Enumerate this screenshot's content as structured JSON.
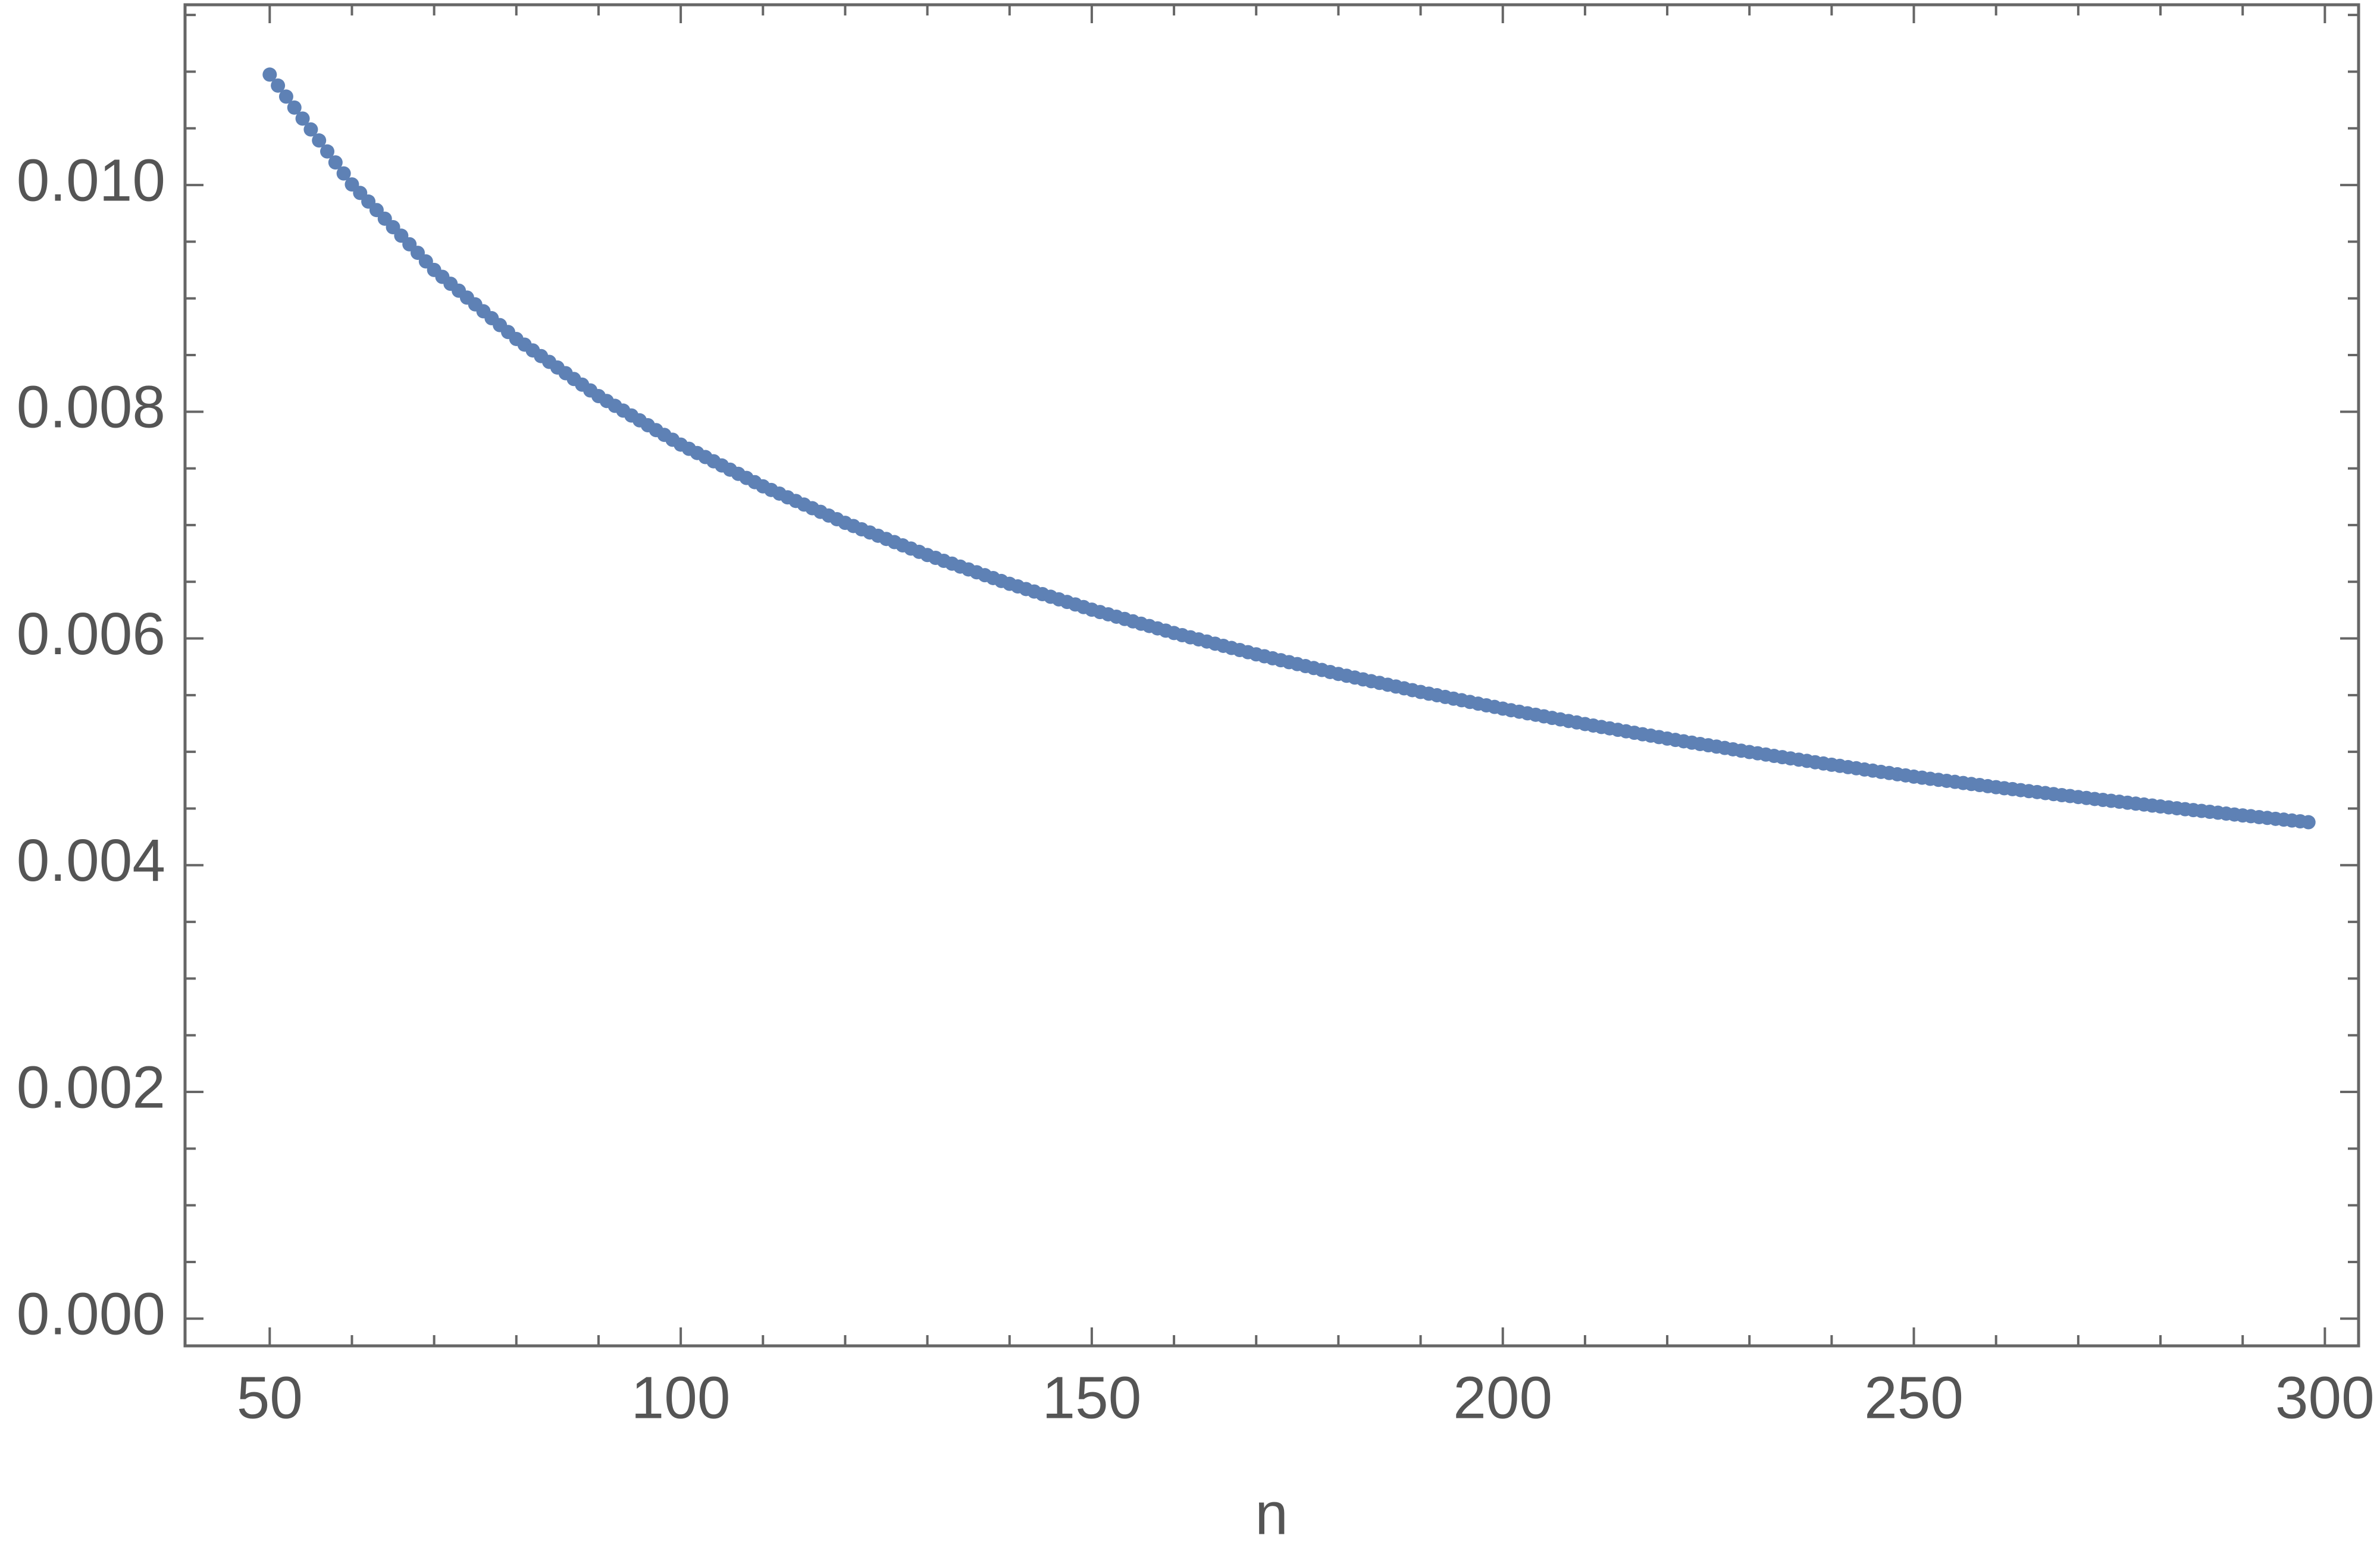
{
  "chart_data": {
    "type": "scatter",
    "x_label": "n",
    "color": "#5e81b5",
    "xlim": [
      39.7,
      304.1
    ],
    "ylim": [
      -0.00024,
      0.01159
    ],
    "xticks": [
      50,
      100,
      150,
      200,
      250,
      300
    ],
    "yticks": [
      {
        "value": 0,
        "label": "0.000"
      },
      {
        "value": 0.002,
        "label": "0.002"
      },
      {
        "value": 0.004,
        "label": "0.004"
      },
      {
        "value": 0.006,
        "label": "0.006"
      },
      {
        "value": 0.008,
        "label": "0.008"
      },
      {
        "value": 0.01,
        "label": "0.010"
      }
    ],
    "x_minor_ticks": [
      60,
      70,
      80,
      90,
      110,
      120,
      130,
      140,
      160,
      170,
      180,
      190,
      210,
      220,
      230,
      240,
      260,
      270,
      280,
      290
    ],
    "y_minor_ticks": [
      0.0005,
      0.001,
      0.0015,
      0.0025,
      0.003,
      0.0035,
      0.0045,
      0.005,
      0.0055,
      0.0065,
      0.007,
      0.0075,
      0.0085,
      0.009,
      0.0095,
      0.0105,
      0.011,
      0.0115
    ],
    "x": [
      50,
      51,
      52,
      53,
      54,
      55,
      56,
      57,
      58,
      59,
      60,
      61,
      62,
      63,
      64,
      65,
      66,
      67,
      68,
      69,
      70,
      71,
      72,
      73,
      74,
      75,
      76,
      77,
      78,
      79,
      80,
      81,
      82,
      83,
      84,
      85,
      86,
      87,
      88,
      89,
      90,
      91,
      92,
      93,
      94,
      95,
      96,
      97,
      98,
      99,
      100,
      101,
      102,
      103,
      104,
      105,
      106,
      107,
      108,
      109,
      110,
      111,
      112,
      113,
      114,
      115,
      116,
      117,
      118,
      119,
      120,
      121,
      122,
      123,
      124,
      125,
      126,
      127,
      128,
      129,
      130,
      131,
      132,
      133,
      134,
      135,
      136,
      137,
      138,
      139,
      140,
      141,
      142,
      143,
      144,
      145,
      146,
      147,
      148,
      149,
      150,
      151,
      152,
      153,
      154,
      155,
      156,
      157,
      158,
      159,
      160,
      161,
      162,
      163,
      164,
      165,
      166,
      167,
      168,
      169,
      170,
      171,
      172,
      173,
      174,
      175,
      176,
      177,
      178,
      179,
      180,
      181,
      182,
      183,
      184,
      185,
      186,
      187,
      188,
      189,
      190,
      191,
      192,
      193,
      194,
      195,
      196,
      197,
      198,
      199,
      200,
      201,
      202,
      203,
      204,
      205,
      206,
      207,
      208,
      209,
      210,
      211,
      212,
      213,
      214,
      215,
      216,
      217,
      218,
      219,
      220,
      221,
      222,
      223,
      224,
      225,
      226,
      227,
      228,
      229,
      230,
      231,
      232,
      233,
      234,
      235,
      236,
      237,
      238,
      239,
      240,
      241,
      242,
      243,
      244,
      245,
      246,
      247,
      248,
      249,
      250,
      251,
      252,
      253,
      254,
      255,
      256,
      257,
      258,
      259,
      260,
      261,
      262,
      263,
      264,
      265,
      266,
      267,
      268,
      269,
      270,
      271,
      272,
      273,
      274,
      275,
      276,
      277,
      278,
      279,
      280,
      281,
      282,
      283,
      284,
      285,
      286,
      287,
      288,
      289,
      290,
      291,
      292,
      293,
      294,
      295,
      296,
      297,
      298
    ],
    "values": [
      0.010974,
      0.010877,
      0.01078,
      0.010683,
      0.010586,
      0.01049,
      0.010393,
      0.010296,
      0.010199,
      0.010102,
      0.010005,
      0.00993,
      0.009854,
      0.009779,
      0.009703,
      0.009628,
      0.009553,
      0.009477,
      0.009402,
      0.009326,
      0.009251,
      0.00919,
      0.009129,
      0.009068,
      0.009007,
      0.008947,
      0.008886,
      0.008825,
      0.008764,
      0.008703,
      0.008642,
      0.008592,
      0.008541,
      0.008491,
      0.00844,
      0.00839,
      0.00834,
      0.008289,
      0.008239,
      0.008188,
      0.008138,
      0.008095,
      0.008052,
      0.00801,
      0.007967,
      0.007924,
      0.007881,
      0.007838,
      0.007796,
      0.007753,
      0.00771,
      0.007673,
      0.007636,
      0.0076,
      0.007563,
      0.007526,
      0.007489,
      0.007452,
      0.007416,
      0.007379,
      0.007342,
      0.00731,
      0.007278,
      0.007245,
      0.007213,
      0.007181,
      0.007149,
      0.007117,
      0.007084,
      0.007052,
      0.00702,
      0.006992,
      0.006963,
      0.006935,
      0.006906,
      0.006878,
      0.00685,
      0.006821,
      0.006793,
      0.006764,
      0.006736,
      0.006711,
      0.006685,
      0.00666,
      0.006634,
      0.006609,
      0.006584,
      0.006558,
      0.006533,
      0.006507,
      0.006482,
      0.006459,
      0.006436,
      0.006414,
      0.006391,
      0.006368,
      0.006345,
      0.006322,
      0.0063,
      0.006277,
      0.006254,
      0.006233,
      0.006213,
      0.006192,
      0.006172,
      0.006151,
      0.00613,
      0.00611,
      0.006089,
      0.006069,
      0.006048,
      0.006029,
      0.00601,
      0.005992,
      0.005973,
      0.005954,
      0.005935,
      0.005916,
      0.005898,
      0.005879,
      0.00586,
      0.005843,
      0.005825,
      0.005808,
      0.005791,
      0.005774,
      0.005756,
      0.005739,
      0.005722,
      0.005704,
      0.005687,
      0.005671,
      0.005655,
      0.005639,
      0.005623,
      0.005608,
      0.005592,
      0.005576,
      0.00556,
      0.005544,
      0.005528,
      0.005513,
      0.005499,
      0.005484,
      0.005469,
      0.005455,
      0.00544,
      0.005425,
      0.00541,
      0.005396,
      0.005381,
      0.005367,
      0.005354,
      0.00534,
      0.005327,
      0.005313,
      0.005299,
      0.005286,
      0.005272,
      0.005259,
      0.005245,
      0.005232,
      0.005219,
      0.005207,
      0.005194,
      0.005181,
      0.005168,
      0.005155,
      0.005143,
      0.00513,
      0.005117,
      0.005105,
      0.005093,
      0.005081,
      0.005069,
      0.005058,
      0.005046,
      0.005034,
      0.005022,
      0.00501,
      0.004998,
      0.004987,
      0.004976,
      0.004964,
      0.004953,
      0.004942,
      0.004931,
      0.00492,
      0.004908,
      0.004897,
      0.004886,
      0.004876,
      0.004865,
      0.004855,
      0.004844,
      0.004834,
      0.004823,
      0.004813,
      0.004802,
      0.004792,
      0.004781,
      0.004772,
      0.004762,
      0.004753,
      0.004744,
      0.004735,
      0.004725,
      0.004716,
      0.004707,
      0.004697,
      0.004688,
      0.004679,
      0.004671,
      0.004662,
      0.004653,
      0.004645,
      0.004636,
      0.004627,
      0.004618,
      0.00461,
      0.004601,
      0.004593,
      0.004584,
      0.004576,
      0.004568,
      0.00456,
      0.004551,
      0.004543,
      0.004535,
      0.004526,
      0.004518,
      0.00451,
      0.004502,
      0.004494,
      0.004486,
      0.004479,
      0.004471,
      0.004463,
      0.004455,
      0.004447,
      0.004439,
      0.004432,
      0.004424,
      0.004417,
      0.004409,
      0.004402,
      0.004394,
      0.004387,
      0.004379
    ]
  }
}
